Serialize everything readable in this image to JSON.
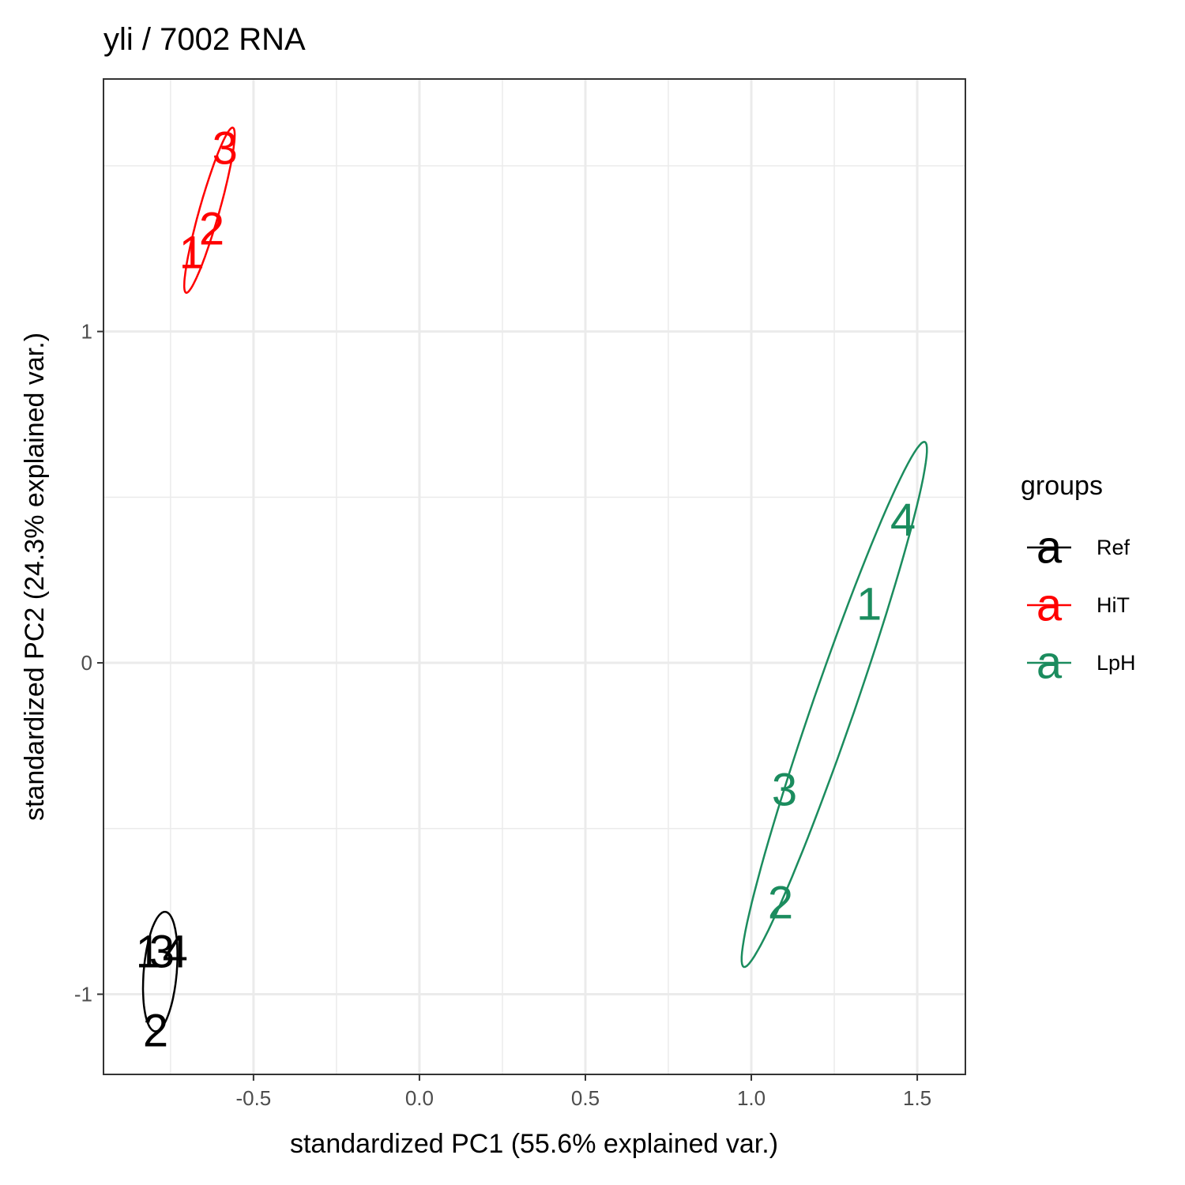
{
  "chart_data": {
    "type": "scatter",
    "title": "yli /  7002  RNA",
    "x_label": "standardized PC1 (55.6% explained var.)",
    "y_label": "standardized PC2 (24.3% explained var.)",
    "xlim": [
      -0.952,
      1.645
    ],
    "ylim": [
      -1.242,
      1.762
    ],
    "xticks": [
      -0.5,
      {
        "value": 0,
        "label": "0.0"
      },
      0.5,
      {
        "value": 1,
        "label": "1.0"
      },
      1.5
    ],
    "yticks": [
      -1,
      0,
      1
    ],
    "grid": true,
    "legend_position": "right",
    "legend_title": "groups",
    "legend_key_glyph": "a",
    "series": [
      {
        "name": "Ref",
        "color": "#000000",
        "labels": [
          "1",
          "3",
          "4",
          "2"
        ],
        "x": [
          -0.817,
          -0.776,
          -0.736,
          -0.795
        ],
        "values": [
          -0.872,
          -0.872,
          -0.872,
          -1.111
        ]
      },
      {
        "name": "HiT",
        "color": "#ff0000",
        "labels": [
          "1",
          "2",
          "3"
        ],
        "x": [
          -0.686,
          -0.626,
          -0.586
        ],
        "values": [
          1.237,
          1.309,
          1.552
        ]
      },
      {
        "name": "LpH",
        "color": "#1b8c5e",
        "labels": [
          "4",
          "1",
          "3",
          "2"
        ],
        "x": [
          1.457,
          1.355,
          1.1,
          1.088
        ],
        "values": [
          0.431,
          0.176,
          -0.384,
          -0.725
        ]
      }
    ]
  }
}
